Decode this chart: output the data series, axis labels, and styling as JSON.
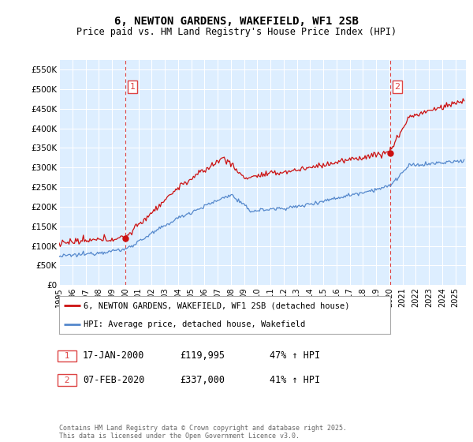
{
  "title": "6, NEWTON GARDENS, WAKEFIELD, WF1 2SB",
  "subtitle": "Price paid vs. HM Land Registry's House Price Index (HPI)",
  "legend_line1": "6, NEWTON GARDENS, WAKEFIELD, WF1 2SB (detached house)",
  "legend_line2": "HPI: Average price, detached house, Wakefield",
  "sale1_label": "1",
  "sale1_date": "17-JAN-2000",
  "sale1_price": "£119,995",
  "sale1_hpi": "47% ↑ HPI",
  "sale2_label": "2",
  "sale2_date": "07-FEB-2020",
  "sale2_price": "£337,000",
  "sale2_hpi": "41% ↑ HPI",
  "footer": "Contains HM Land Registry data © Crown copyright and database right 2025.\nThis data is licensed under the Open Government Licence v3.0.",
  "hpi_line_color": "#5588cc",
  "price_line_color": "#cc1111",
  "sale_marker_color": "#cc1111",
  "vline_color": "#dd4444",
  "plot_bg_color": "#ddeeff",
  "background_color": "#ffffff",
  "grid_color": "#ffffff",
  "ylim": [
    0,
    575000
  ],
  "yticks": [
    0,
    50000,
    100000,
    150000,
    200000,
    250000,
    300000,
    350000,
    400000,
    450000,
    500000,
    550000
  ],
  "ytick_labels": [
    "£0",
    "£50K",
    "£100K",
    "£150K",
    "£200K",
    "£250K",
    "£300K",
    "£350K",
    "£400K",
    "£450K",
    "£500K",
    "£550K"
  ],
  "xmin": 1995.0,
  "xmax": 2025.8,
  "sale1_x": 2000.04,
  "sale1_y": 119995,
  "sale2_x": 2020.09,
  "sale2_y": 337000
}
